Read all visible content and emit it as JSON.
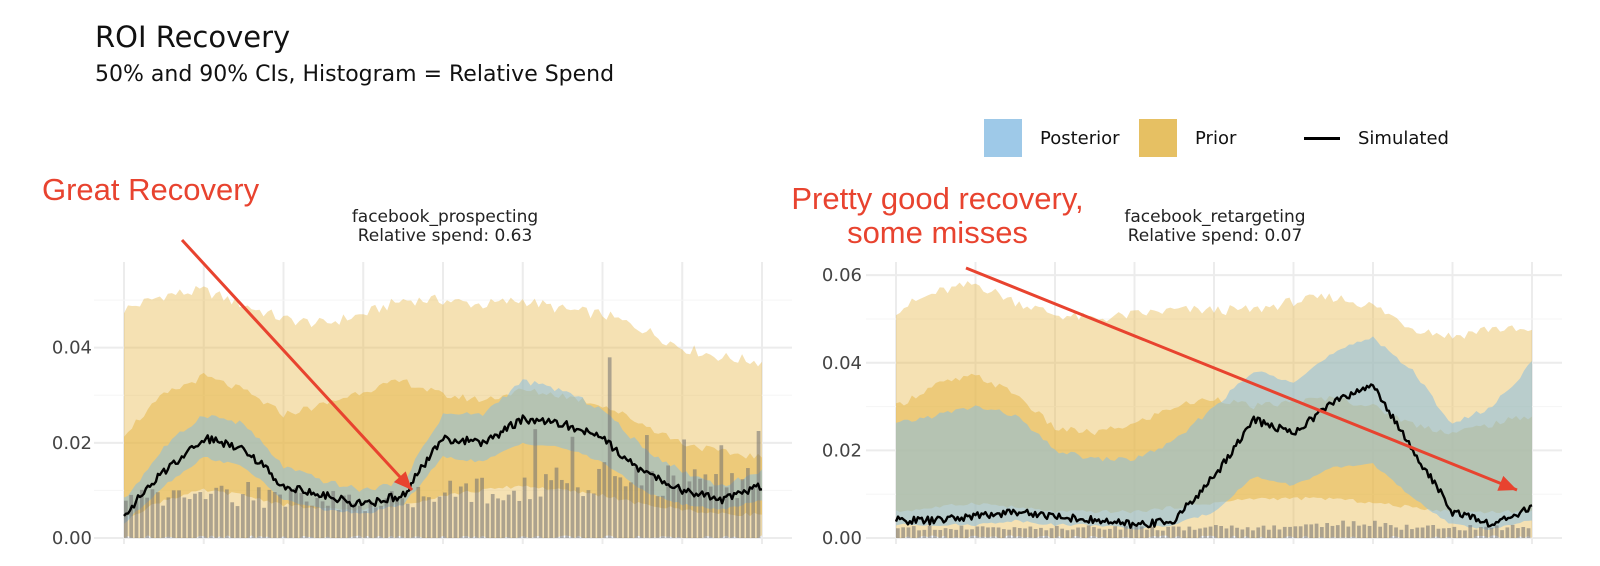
{
  "title": "ROI Recovery",
  "subtitle": "50% and 90% CIs, Histogram = Relative Spend",
  "legend": [
    {
      "label": "Posterior",
      "color": "#9ec9e8"
    },
    {
      "label": "Prior",
      "color": "#e6c063"
    },
    {
      "label": "Simulated",
      "color": "#000000"
    }
  ],
  "annotations": [
    {
      "text_lines": [
        "Great Recovery"
      ]
    },
    {
      "text_lines": [
        "Pretty good recovery,",
        "some misses"
      ]
    }
  ],
  "colors": {
    "prior": "#e6b84a",
    "posterior": "#86bde0",
    "simulated": "#000000",
    "spend": "#6f6f6f",
    "annotation": "#e8432f",
    "grid": "#ececec"
  },
  "chart_data": [
    {
      "type": "area",
      "panel": "facebook_prospecting",
      "title": "facebook_prospecting",
      "subtitle": "Relative spend: 0.63",
      "ylim": [
        0,
        0.058
      ],
      "y_ticks": [
        0.0,
        0.02,
        0.04
      ],
      "y_tick_labels": [
        "0.00",
        "0.02",
        "0.04"
      ],
      "x": [
        0,
        10,
        20,
        30,
        40,
        50,
        60,
        70,
        80,
        90,
        100
      ],
      "simulated": [
        0.005,
        0.014,
        0.021,
        0.019,
        0.011,
        0.009,
        0.007,
        0.009,
        0.021,
        0.02,
        0.025,
        0.024,
        0.021,
        0.014,
        0.01,
        0.008,
        0.011
      ],
      "prior_90": {
        "low": [
          0.0,
          0.0,
          0.0,
          0.0,
          0.0,
          0.0,
          0.0,
          0.0,
          0.0,
          0.0,
          0.0,
          0.0,
          0.0,
          0.0,
          0.0,
          0.0,
          0.0
        ],
        "high": [
          0.048,
          0.051,
          0.052,
          0.049,
          0.046,
          0.045,
          0.047,
          0.05,
          0.05,
          0.049,
          0.05,
          0.048,
          0.047,
          0.044,
          0.04,
          0.038,
          0.037
        ]
      },
      "prior_50": {
        "low": [
          0.004,
          0.008,
          0.01,
          0.009,
          0.007,
          0.006,
          0.006,
          0.007,
          0.009,
          0.01,
          0.011,
          0.01,
          0.009,
          0.007,
          0.006,
          0.005,
          0.005
        ],
        "high": [
          0.022,
          0.03,
          0.034,
          0.031,
          0.026,
          0.028,
          0.031,
          0.033,
          0.03,
          0.029,
          0.031,
          0.03,
          0.028,
          0.024,
          0.02,
          0.018,
          0.017
        ]
      },
      "posterior_90": {
        "low": [
          0.003,
          0.011,
          0.017,
          0.015,
          0.008,
          0.006,
          0.005,
          0.007,
          0.017,
          0.016,
          0.02,
          0.019,
          0.016,
          0.01,
          0.007,
          0.006,
          0.008
        ],
        "high": [
          0.008,
          0.019,
          0.026,
          0.024,
          0.015,
          0.012,
          0.01,
          0.012,
          0.026,
          0.026,
          0.033,
          0.031,
          0.027,
          0.019,
          0.014,
          0.011,
          0.014
        ]
      },
      "spend": [
        0.01,
        0.011,
        0.012,
        0.012,
        0.011,
        0.01,
        0.01,
        0.011,
        0.012,
        0.013,
        0.014,
        0.015,
        0.016,
        0.016,
        0.015,
        0.014,
        0.016
      ]
    },
    {
      "type": "area",
      "panel": "facebook_retargeting",
      "title": "facebook_retargeting",
      "subtitle": "Relative spend: 0.07",
      "ylim": [
        0,
        0.063
      ],
      "y_ticks": [
        0.0,
        0.02,
        0.04,
        0.06
      ],
      "y_tick_labels": [
        "0.00",
        "0.02",
        "0.04",
        "0.06"
      ],
      "x": [
        0,
        10,
        20,
        30,
        40,
        50,
        60,
        70,
        80,
        90,
        100
      ],
      "simulated": [
        0.004,
        0.004,
        0.005,
        0.006,
        0.005,
        0.004,
        0.003,
        0.004,
        0.014,
        0.027,
        0.024,
        0.031,
        0.035,
        0.02,
        0.006,
        0.003,
        0.007
      ],
      "prior_90": {
        "low": [
          0.0,
          0.0,
          0.0,
          0.0,
          0.0,
          0.0,
          0.0,
          0.0,
          0.0,
          0.0,
          0.0,
          0.0,
          0.0,
          0.0,
          0.0,
          0.0,
          0.0
        ],
        "high": [
          0.052,
          0.056,
          0.058,
          0.054,
          0.051,
          0.05,
          0.051,
          0.052,
          0.052,
          0.052,
          0.054,
          0.055,
          0.053,
          0.048,
          0.046,
          0.048,
          0.047
        ]
      },
      "prior_50": {
        "low": [
          0.006,
          0.007,
          0.008,
          0.007,
          0.006,
          0.006,
          0.006,
          0.007,
          0.008,
          0.009,
          0.009,
          0.009,
          0.008,
          0.007,
          0.006,
          0.006,
          0.006
        ],
        "high": [
          0.03,
          0.035,
          0.037,
          0.033,
          0.025,
          0.024,
          0.026,
          0.03,
          0.032,
          0.03,
          0.031,
          0.032,
          0.03,
          0.026,
          0.024,
          0.026,
          0.028
        ]
      },
      "posterior_90": {
        "low": [
          0.003,
          0.003,
          0.003,
          0.004,
          0.003,
          0.003,
          0.002,
          0.003,
          0.006,
          0.014,
          0.012,
          0.016,
          0.017,
          0.009,
          0.003,
          0.002,
          0.004
        ],
        "high": [
          0.026,
          0.028,
          0.03,
          0.028,
          0.02,
          0.018,
          0.018,
          0.022,
          0.03,
          0.038,
          0.036,
          0.042,
          0.046,
          0.038,
          0.026,
          0.03,
          0.04
        ]
      },
      "spend": [
        0.003,
        0.003,
        0.003,
        0.003,
        0.003,
        0.003,
        0.003,
        0.003,
        0.003,
        0.003,
        0.003,
        0.004,
        0.004,
        0.003,
        0.003,
        0.003,
        0.003
      ]
    }
  ]
}
